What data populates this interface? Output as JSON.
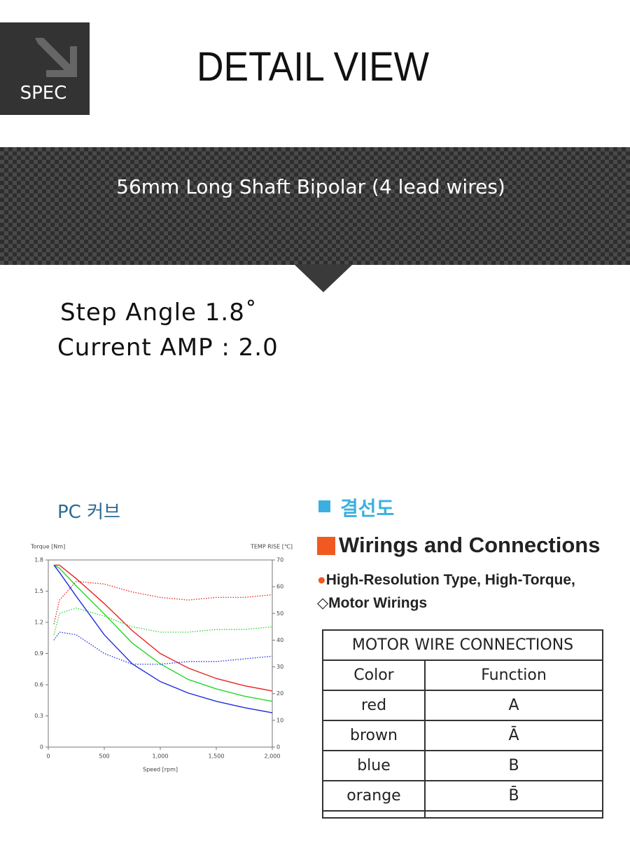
{
  "header": {
    "badge": "SPEC",
    "title": "DETAIL VIEW"
  },
  "banner": {
    "title": "56mm Long Shaft Bipolar (4 lead wires)"
  },
  "specs": [
    "Step Angle 1.8˚",
    "Current AMP : 2.0"
  ],
  "curve_heading": "PC 커브",
  "chart": {
    "type": "line",
    "ylabel": "Torque [Nm]",
    "y2label": "TEMP RISE [℃]",
    "xlabel": "Speed [rpm]",
    "xlim": [
      0,
      2000
    ],
    "xticks": [
      0,
      500,
      {
        "value": 1000,
        "label": "1,000"
      },
      {
        "value": 1500,
        "label": "1,500"
      },
      {
        "value": 2000,
        "label": "2,000"
      }
    ],
    "ylim": [
      0,
      1.8
    ],
    "yticks": [
      0,
      0.3,
      0.6,
      0.9,
      1.2,
      1.5,
      1.8
    ],
    "y2lim": [
      0,
      70
    ],
    "y2ticks": [
      0,
      10,
      20,
      30,
      40,
      50,
      60,
      70
    ],
    "x": [
      50,
      100,
      250,
      500,
      750,
      1000,
      1250,
      1500,
      1750,
      2000
    ],
    "series": [
      {
        "color": "#e8231f",
        "values": [
          1.75,
          1.75,
          1.62,
          1.38,
          1.12,
          0.9,
          0.76,
          0.66,
          0.59,
          0.54
        ]
      },
      {
        "color": "#27d628",
        "values": [
          1.75,
          1.72,
          1.55,
          1.28,
          1.0,
          0.8,
          0.65,
          0.56,
          0.49,
          0.44
        ]
      },
      {
        "color": "#1f2be0",
        "values": [
          1.75,
          1.68,
          1.45,
          1.08,
          0.8,
          0.63,
          0.52,
          0.44,
          0.38,
          0.33
        ]
      },
      {
        "color": "#e8231f",
        "axis": "y2",
        "linestyle": "dotted",
        "values": [
          46,
          55,
          62,
          61,
          58,
          56,
          55,
          56,
          56,
          57
        ]
      },
      {
        "color": "#27d628",
        "axis": "y2",
        "linestyle": "dotted",
        "values": [
          42,
          50,
          52,
          49,
          45,
          43,
          43,
          44,
          44,
          45
        ]
      },
      {
        "color": "#1f2be0",
        "axis": "y2",
        "linestyle": "dotted",
        "values": [
          40,
          43,
          42,
          35,
          31,
          31,
          32,
          32,
          33,
          34
        ]
      }
    ]
  },
  "wiring": {
    "heading": "결선도",
    "title": "Wirings and Connections",
    "lines": [
      "High-Resolution Type, High-Torque,",
      "Motor Wirings"
    ],
    "table": {
      "caption": "MOTOR WIRE CONNECTIONS",
      "columns": [
        "Color",
        "Function"
      ],
      "rows": [
        [
          "red",
          "A"
        ],
        [
          "brown",
          "Ā"
        ],
        [
          "blue",
          "B"
        ],
        [
          "orange",
          "B̄"
        ]
      ]
    }
  }
}
